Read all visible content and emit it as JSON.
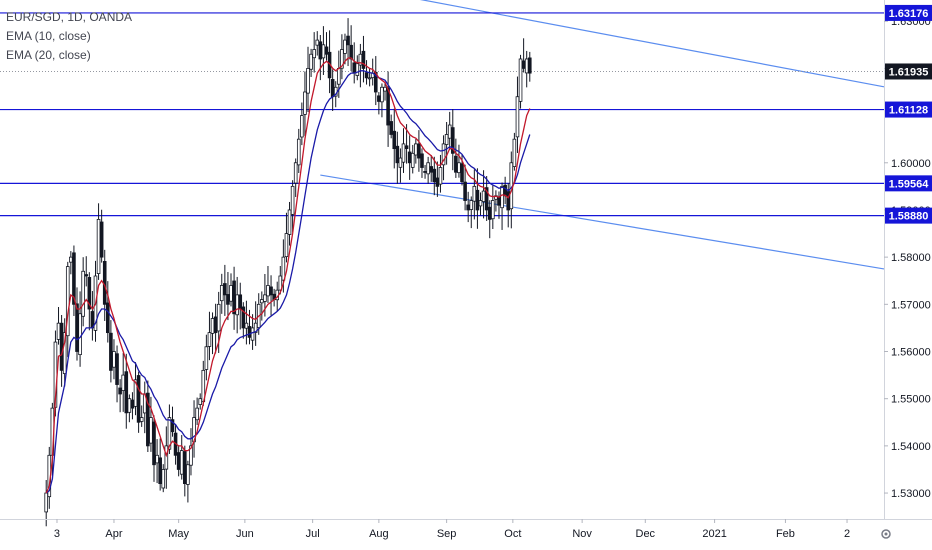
{
  "legend": {
    "symbol": "EUR/SGD, 1D, OANDA",
    "ema10": "EMA (10, close)",
    "ema20": "EMA (20, close)"
  },
  "colors": {
    "candle": "#131722",
    "ema10": "#c2182b",
    "ema20": "#1a1aa8",
    "hline": "#1515d8",
    "trendline": "#5b8def",
    "tag_bg": "#1515d8",
    "last_tag_bg": "#131722"
  },
  "chart_data": {
    "type": "candlestick",
    "y_range": [
      1.5245,
      1.6345
    ],
    "y_ticks": [
      "1.53000",
      "1.54000",
      "1.55000",
      "1.56000",
      "1.57000",
      "1.58000",
      "1.59000",
      "1.60000",
      "1.62000",
      "1.63000"
    ],
    "x_labels": [
      {
        "label": "3",
        "x": 3.5
      },
      {
        "label": "Apr",
        "x": 22
      },
      {
        "label": "May",
        "x": 43
      },
      {
        "label": "Jun",
        "x": 64.5
      },
      {
        "label": "Jul",
        "x": 86.5
      },
      {
        "label": "Aug",
        "x": 108
      },
      {
        "label": "Sep",
        "x": 130
      },
      {
        "label": "Oct",
        "x": 151.5
      },
      {
        "label": "Nov",
        "x": 174
      },
      {
        "label": "Dec",
        "x": 194.5
      },
      {
        "label": "2021",
        "x": 217
      },
      {
        "label": "Feb",
        "x": 240
      },
      {
        "label": "2",
        "x": 260
      }
    ],
    "x_range": [
      -15,
      272
    ],
    "price_levels": [
      {
        "label": "1.63176",
        "value": 1.63176
      },
      {
        "label": "1.61128",
        "value": 1.61128
      },
      {
        "label": "1.59564",
        "value": 1.59564
      },
      {
        "label": "1.58880",
        "value": 1.5888
      }
    ],
    "last_price": {
      "label": "1.61935",
      "value": 1.61935
    },
    "trendlines": [
      {
        "x1": 89,
        "y1": 1.6386,
        "x2": 272,
        "y2": 1.6161
      },
      {
        "x1": 89,
        "y1": 1.5974,
        "x2": 272,
        "y2": 1.5775
      }
    ],
    "closes": [
      1.53,
      1.538,
      1.548,
      1.562,
      1.566,
      1.556,
      1.564,
      1.578,
      1.58,
      1.57,
      1.56,
      1.568,
      1.577,
      1.576,
      1.569,
      1.565,
      1.576,
      1.588,
      1.58,
      1.57,
      1.564,
      1.556,
      1.56,
      1.553,
      1.551,
      1.555,
      1.547,
      1.55,
      1.548,
      1.554,
      1.545,
      1.546,
      1.551,
      1.54,
      1.546,
      1.536,
      1.538,
      1.532,
      1.535,
      1.54,
      1.546,
      1.543,
      1.538,
      1.535,
      1.539,
      1.532,
      1.536,
      1.54,
      1.546,
      1.548,
      1.55,
      1.556,
      1.561,
      1.564,
      1.567,
      1.564,
      1.57,
      1.574,
      1.572,
      1.57,
      1.574,
      1.568,
      1.572,
      1.569,
      1.565,
      1.566,
      1.563,
      1.565,
      1.566,
      1.57,
      1.571,
      1.572,
      1.574,
      1.572,
      1.571,
      1.573,
      1.576,
      1.58,
      1.585,
      1.59,
      1.595,
      1.6,
      1.605,
      1.61,
      1.615,
      1.62,
      1.623,
      1.624,
      1.626,
      1.622,
      1.625,
      1.623,
      1.618,
      1.614,
      1.616,
      1.62,
      1.624,
      1.626,
      1.625,
      1.622,
      1.619,
      1.621,
      1.623,
      1.62,
      1.618,
      1.618,
      1.619,
      1.615,
      1.613,
      1.616,
      1.616,
      1.608,
      1.606,
      1.603,
      1.6,
      1.601,
      1.604,
      1.603,
      1.6,
      1.602,
      1.604,
      1.601,
      1.599,
      1.598,
      1.6,
      1.598,
      1.596,
      1.595,
      1.599,
      1.604,
      1.606,
      1.608,
      1.602,
      1.598,
      1.6,
      1.596,
      1.592,
      1.59,
      1.592,
      1.595,
      1.59,
      1.592,
      1.594,
      1.59,
      1.588,
      1.592,
      1.593,
      1.591,
      1.595,
      1.593,
      1.59,
      1.6,
      1.605,
      1.614,
      1.622,
      1.62,
      1.622,
      1.619
    ],
    "ema10": [
      1.53,
      1.5315,
      1.5372,
      1.55,
      1.559,
      1.5593,
      1.562,
      1.568,
      1.572,
      1.5715,
      1.569,
      1.569,
      1.57,
      1.571,
      1.57,
      1.569,
      1.57,
      1.574,
      1.575,
      1.574,
      1.572,
      1.569,
      1.567,
      1.5645,
      1.562,
      1.56,
      1.558,
      1.556,
      1.554,
      1.5535,
      1.552,
      1.551,
      1.551,
      1.549,
      1.548,
      1.546,
      1.544,
      1.542,
      1.54,
      1.538,
      1.54,
      1.541,
      1.5405,
      1.54,
      1.54,
      1.539,
      1.539,
      1.5395,
      1.541,
      1.543,
      1.546,
      1.549,
      1.552,
      1.555,
      1.558,
      1.56,
      1.562,
      1.565,
      1.5665,
      1.5675,
      1.5685,
      1.5685,
      1.569,
      1.569,
      1.5685,
      1.568,
      1.5675,
      1.567,
      1.5668,
      1.5675,
      1.568,
      1.569,
      1.57,
      1.5705,
      1.571,
      1.5715,
      1.5725,
      1.5745,
      1.577,
      1.581,
      1.585,
      1.59,
      1.595,
      1.6,
      1.605,
      1.609,
      1.613,
      1.616,
      1.619,
      1.62,
      1.621,
      1.6215,
      1.621,
      1.62,
      1.6195,
      1.62,
      1.6205,
      1.6215,
      1.6222,
      1.6222,
      1.6215,
      1.6212,
      1.6212,
      1.621,
      1.6205,
      1.62,
      1.6198,
      1.619,
      1.618,
      1.6175,
      1.617,
      1.6155,
      1.614,
      1.612,
      1.61,
      1.6085,
      1.6078,
      1.607,
      1.606,
      1.6055,
      1.6052,
      1.6045,
      1.6035,
      1.6025,
      1.602,
      1.6015,
      1.6005,
      1.5995,
      1.5995,
      1.6005,
      1.6015,
      1.603,
      1.603,
      1.602,
      1.6015,
      1.6005,
      1.599,
      1.5975,
      1.5968,
      1.5965,
      1.5955,
      1.595,
      1.5948,
      1.594,
      1.593,
      1.5928,
      1.5929,
      1.5927,
      1.5932,
      1.5931,
      1.5926,
      1.594,
      1.596,
      1.6,
      1.604,
      1.607,
      1.61,
      1.6115
    ],
    "ema20": [
      1.53,
      1.5305,
      1.533,
      1.54,
      1.547,
      1.55,
      1.553,
      1.558,
      1.562,
      1.563,
      1.5625,
      1.563,
      1.564,
      1.565,
      1.565,
      1.565,
      1.566,
      1.568,
      1.569,
      1.569,
      1.5685,
      1.5675,
      1.5665,
      1.565,
      1.5635,
      1.5625,
      1.561,
      1.5595,
      1.558,
      1.5575,
      1.556,
      1.555,
      1.5545,
      1.553,
      1.552,
      1.5505,
      1.5495,
      1.548,
      1.5465,
      1.5455,
      1.5455,
      1.545,
      1.5445,
      1.5435,
      1.543,
      1.542,
      1.5415,
      1.5415,
      1.542,
      1.5425,
      1.5435,
      1.545,
      1.547,
      1.549,
      1.551,
      1.5525,
      1.5545,
      1.5565,
      1.558,
      1.5595,
      1.561,
      1.5615,
      1.5625,
      1.563,
      1.5632,
      1.5635,
      1.5637,
      1.564,
      1.5642,
      1.5648,
      1.5655,
      1.5662,
      1.567,
      1.5675,
      1.568,
      1.5685,
      1.5692,
      1.5705,
      1.572,
      1.5745,
      1.5775,
      1.581,
      1.585,
      1.589,
      1.593,
      1.597,
      1.601,
      1.604,
      1.607,
      1.609,
      1.611,
      1.6125,
      1.6135,
      1.614,
      1.6145,
      1.6155,
      1.6165,
      1.6175,
      1.6185,
      1.619,
      1.619,
      1.6192,
      1.6195,
      1.6195,
      1.6193,
      1.6191,
      1.619,
      1.6185,
      1.618,
      1.6178,
      1.6175,
      1.6165,
      1.6155,
      1.6143,
      1.613,
      1.612,
      1.6113,
      1.6105,
      1.6095,
      1.6088,
      1.6083,
      1.6075,
      1.6066,
      1.6057,
      1.6051,
      1.6044,
      1.6036,
      1.6028,
      1.6025,
      1.6026,
      1.6029,
      1.6034,
      1.6032,
      1.6027,
      1.6024,
      1.6018,
      1.6008,
      1.5998,
      1.5992,
      1.5988,
      1.598,
      1.5975,
      1.5972,
      1.5965,
      1.5957,
      1.5953,
      1.595,
      1.5946,
      1.5948,
      1.5946,
      1.5941,
      1.5947,
      1.5957,
      1.5975,
      1.6,
      1.602,
      1.604,
      1.606
    ]
  }
}
